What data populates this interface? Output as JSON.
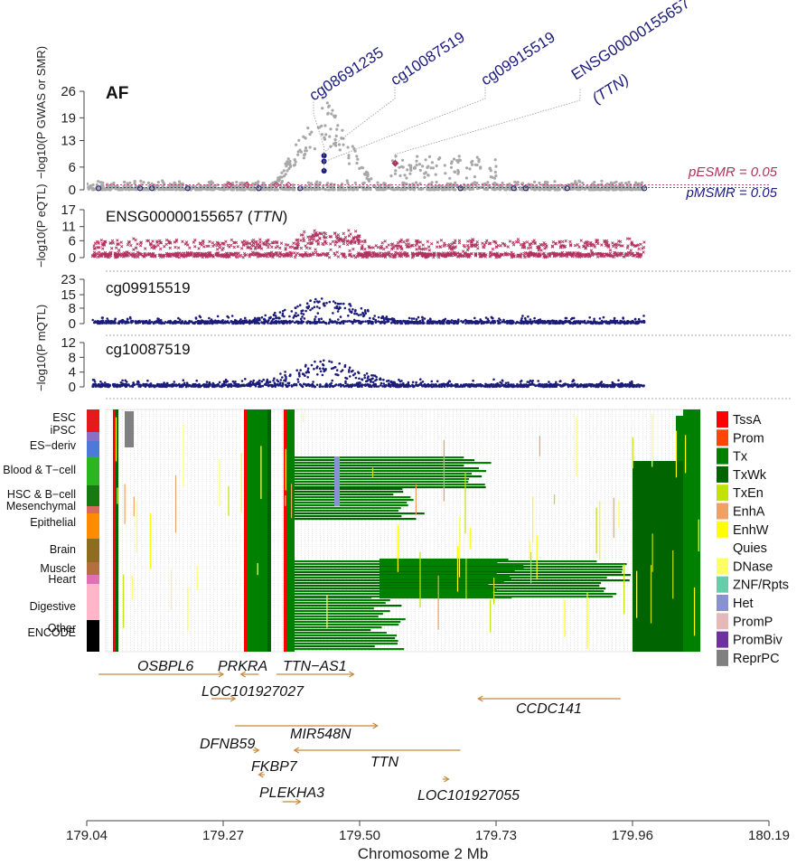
{
  "chart_data": {
    "type": "scatter",
    "title": "AF",
    "xlabel": "Chromosome 2 Mb",
    "xlim": [
      179.04,
      180.19
    ],
    "xticks": [
      "179.04",
      "179.27",
      "179.50",
      "179.73",
      "179.96",
      "180.19"
    ],
    "gwas_panel": {
      "ylabel": "−log10(P GWAS or SMR)",
      "yticks": [
        "0",
        "6",
        "13",
        "19",
        "26"
      ],
      "ylim": [
        0,
        26
      ],
      "thresholds": [
        {
          "label": "pESMR = 0.05",
          "color": "#b0325e"
        },
        {
          "label": "pMSMR = 0.05",
          "color": "#1c1c7a"
        }
      ],
      "smr_probes": [
        {
          "name": "cg08691235",
          "x": 179.44,
          "smr": 9.0,
          "color": "#1c1c7a"
        },
        {
          "name": "cg10087519",
          "x": 179.44,
          "smr": 7.5,
          "color": "#1c1c7a"
        },
        {
          "name": "cg09915519",
          "x": 179.44,
          "smr": 5.0,
          "color": "#1c1c7a"
        },
        {
          "name": "ENSG00000155657",
          "name2": "(TTN)",
          "x": 179.56,
          "smr": 7.0,
          "color": "#b0325e"
        }
      ]
    },
    "eqtl_panel": {
      "label": "ENSG00000155657",
      "label_gene": "TTN",
      "ylabel": "−log10(P eQTL)",
      "yticks": [
        "0",
        "6",
        "11",
        "17"
      ],
      "ylim": [
        0,
        17
      ],
      "color": "#b0325e"
    },
    "mqtl_panels": [
      {
        "label": "cg09915519",
        "yticks": [
          "0",
          "8",
          "15",
          "23"
        ],
        "ylim": [
          0,
          23
        ],
        "color": "#1c1c7a"
      },
      {
        "label": "cg10087519",
        "yticks": [
          "0",
          "4",
          "8",
          "12"
        ],
        "ylim": [
          0,
          12
        ],
        "color": "#1c1c7a"
      }
    ],
    "mqtl_ylabel": "−log10(P mQTL)",
    "tissue_groups": [
      {
        "name": "ESC",
        "color": "#e41a1c"
      },
      {
        "name": "iPSC",
        "color": "#8b6fc6"
      },
      {
        "name": "ES−deriv",
        "color": "#4f79d8"
      },
      {
        "name": "Blood & T−cell",
        "color": "#2bb51f"
      },
      {
        "name": "HSC & B−cell",
        "color": "#167a12"
      },
      {
        "name": "Mesenchymal",
        "color": "#d9685f"
      },
      {
        "name": "Epithelial",
        "color": "#ff8c00"
      },
      {
        "name": "Brain",
        "color": "#8f6d1f"
      },
      {
        "name": "Muscle",
        "color": "#b56f3f"
      },
      {
        "name": "Heart",
        "color": "#e06fb3"
      },
      {
        "name": "Digestive",
        "color": "#ffb6c8"
      },
      {
        "name": "Other",
        "color": "#a6a6a6"
      },
      {
        "name": "ENCODE",
        "color": "#000000"
      }
    ],
    "chromatin_states": [
      {
        "name": "TssA",
        "color": "#ff0000"
      },
      {
        "name": "Prom",
        "color": "#ff4500"
      },
      {
        "name": "Tx",
        "color": "#008000"
      },
      {
        "name": "TxWk",
        "color": "#006400"
      },
      {
        "name": "TxEn",
        "color": "#c2e105"
      },
      {
        "name": "EnhA",
        "color": "#f0a060"
      },
      {
        "name": "EnhW",
        "color": "#ffff00"
      },
      {
        "name": "Quies",
        "color": "#ffffff"
      },
      {
        "name": "DNase",
        "color": "#ffff66"
      },
      {
        "name": "ZNF/Rpts",
        "color": "#66cdaa"
      },
      {
        "name": "Het",
        "color": "#8a91d0"
      },
      {
        "name": "PromP",
        "color": "#e6b8b7"
      },
      {
        "name": "PromBiv",
        "color": "#7030a0"
      },
      {
        "name": "ReprPC",
        "color": "#808080"
      }
    ],
    "genes": [
      {
        "name": "OSBPL6",
        "start": 179.06,
        "end": 179.27,
        "strand": "+"
      },
      {
        "name": "PRKRA",
        "start": 179.3,
        "end": 179.33,
        "strand": "-"
      },
      {
        "name": "TTN−AS1",
        "start": 179.36,
        "end": 179.49,
        "strand": "+"
      },
      {
        "name": "CCDC141",
        "start": 179.7,
        "end": 179.94,
        "strand": "-"
      },
      {
        "name": "LOC101927027",
        "start": 179.25,
        "end": 179.29,
        "strand": "+"
      },
      {
        "name": "MIR548N",
        "start": 179.29,
        "end": 179.53,
        "strand": "+"
      },
      {
        "name": "DFNB59",
        "start": 179.32,
        "end": 179.33,
        "strand": "+"
      },
      {
        "name": "TTN",
        "start": 179.39,
        "end": 179.67,
        "strand": "-"
      },
      {
        "name": "FKBP7",
        "start": 179.33,
        "end": 179.34,
        "strand": "-"
      },
      {
        "name": "LOC101927055",
        "start": 179.64,
        "end": 179.65,
        "strand": "+"
      },
      {
        "name": "PLEKHA3",
        "start": 179.37,
        "end": 179.4,
        "strand": "+"
      }
    ],
    "gene_color": "#c8893a",
    "grey_color": "#a8a8a8"
  }
}
